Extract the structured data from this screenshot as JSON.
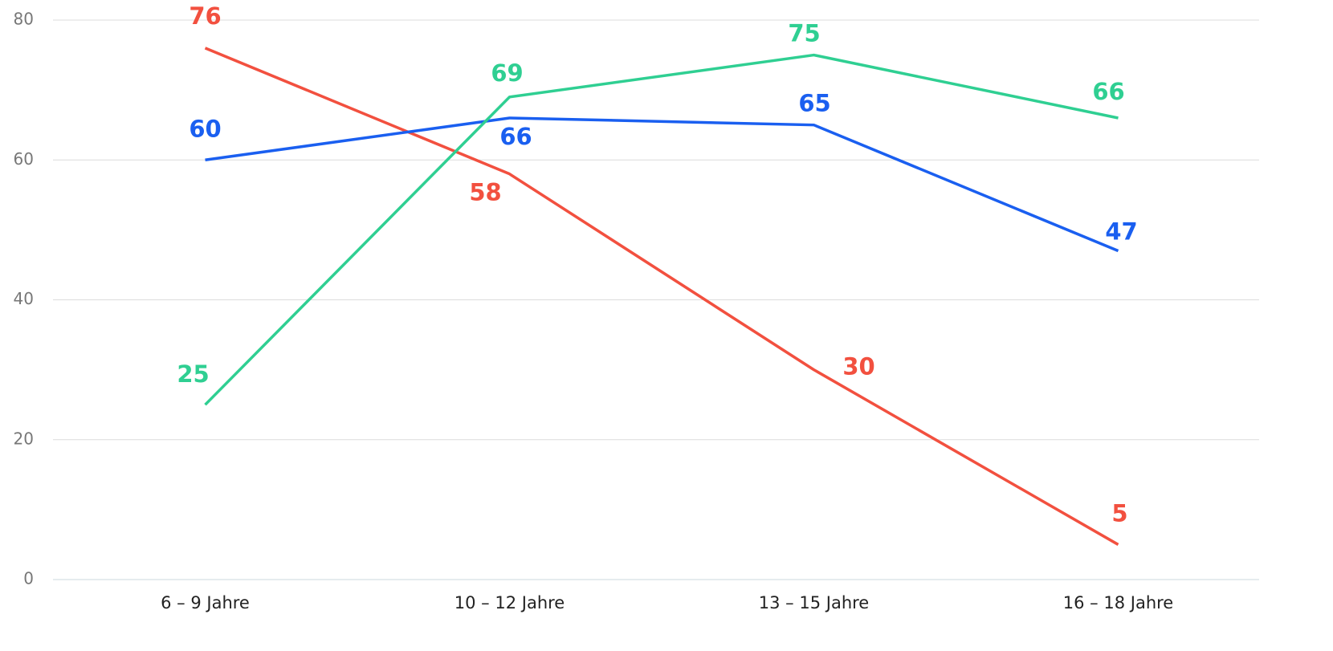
{
  "chart_data": {
    "type": "line",
    "categories": [
      "6 – 9 Jahre",
      "10 – 12 Jahre",
      "13 – 15 Jahre",
      "16 – 18 Jahre"
    ],
    "series": [
      {
        "color": "#f2503f",
        "values": [
          76,
          58,
          30,
          5
        ]
      },
      {
        "color": "#1a5ff0",
        "values": [
          60,
          66,
          65,
          47
        ]
      },
      {
        "color": "#2fcf92",
        "values": [
          25,
          69,
          75,
          66
        ]
      }
    ],
    "ylim": [
      0,
      80
    ],
    "yticks": [
      0,
      20,
      40,
      60,
      80
    ],
    "grid": true
  }
}
